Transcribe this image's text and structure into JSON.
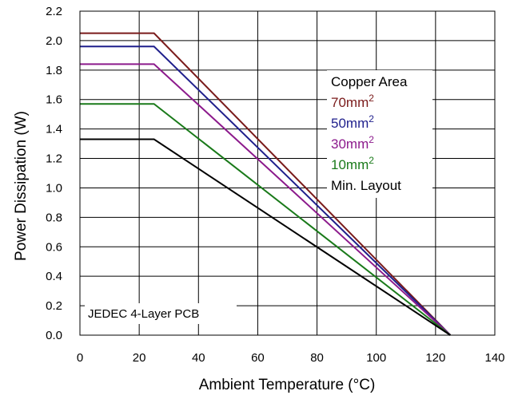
{
  "chart_data": {
    "type": "line",
    "xlabel": "Ambient Temperature (°C)",
    "ylabel": "Power Dissipation (W)",
    "xlim": [
      0,
      140
    ],
    "ylim": [
      0.0,
      2.2
    ],
    "x_ticks": [
      "0",
      "20",
      "40",
      "60",
      "80",
      "100",
      "120",
      "140"
    ],
    "y_ticks": [
      "0.0",
      "0.2",
      "0.4",
      "0.6",
      "0.8",
      "1.0",
      "1.2",
      "1.4",
      "1.6",
      "1.8",
      "2.0",
      "2.2"
    ],
    "grid": true,
    "legend_title": "Copper Area",
    "legend_position": "upper-right inside plot",
    "annotation": "JEDEC 4-Layer PCB",
    "series": [
      {
        "name": "70mm",
        "superscript": "2",
        "color": "#7a1a1a",
        "x": [
          0,
          25,
          125
        ],
        "y": [
          2.05,
          2.05,
          0.0
        ]
      },
      {
        "name": "50mm",
        "superscript": "2",
        "color": "#1f1f8c",
        "x": [
          0,
          25,
          125
        ],
        "y": [
          1.96,
          1.96,
          0.0
        ]
      },
      {
        "name": "30mm",
        "superscript": "2",
        "color": "#8c1a8c",
        "x": [
          0,
          25,
          125
        ],
        "y": [
          1.84,
          1.84,
          0.0
        ]
      },
      {
        "name": "10mm",
        "superscript": "2",
        "color": "#1a7a1a",
        "x": [
          0,
          25,
          125
        ],
        "y": [
          1.57,
          1.57,
          0.0
        ]
      },
      {
        "name": "Min. Layout",
        "superscript": "",
        "color": "#000000",
        "x": [
          0,
          25,
          125
        ],
        "y": [
          1.33,
          1.33,
          0.0
        ]
      }
    ]
  }
}
